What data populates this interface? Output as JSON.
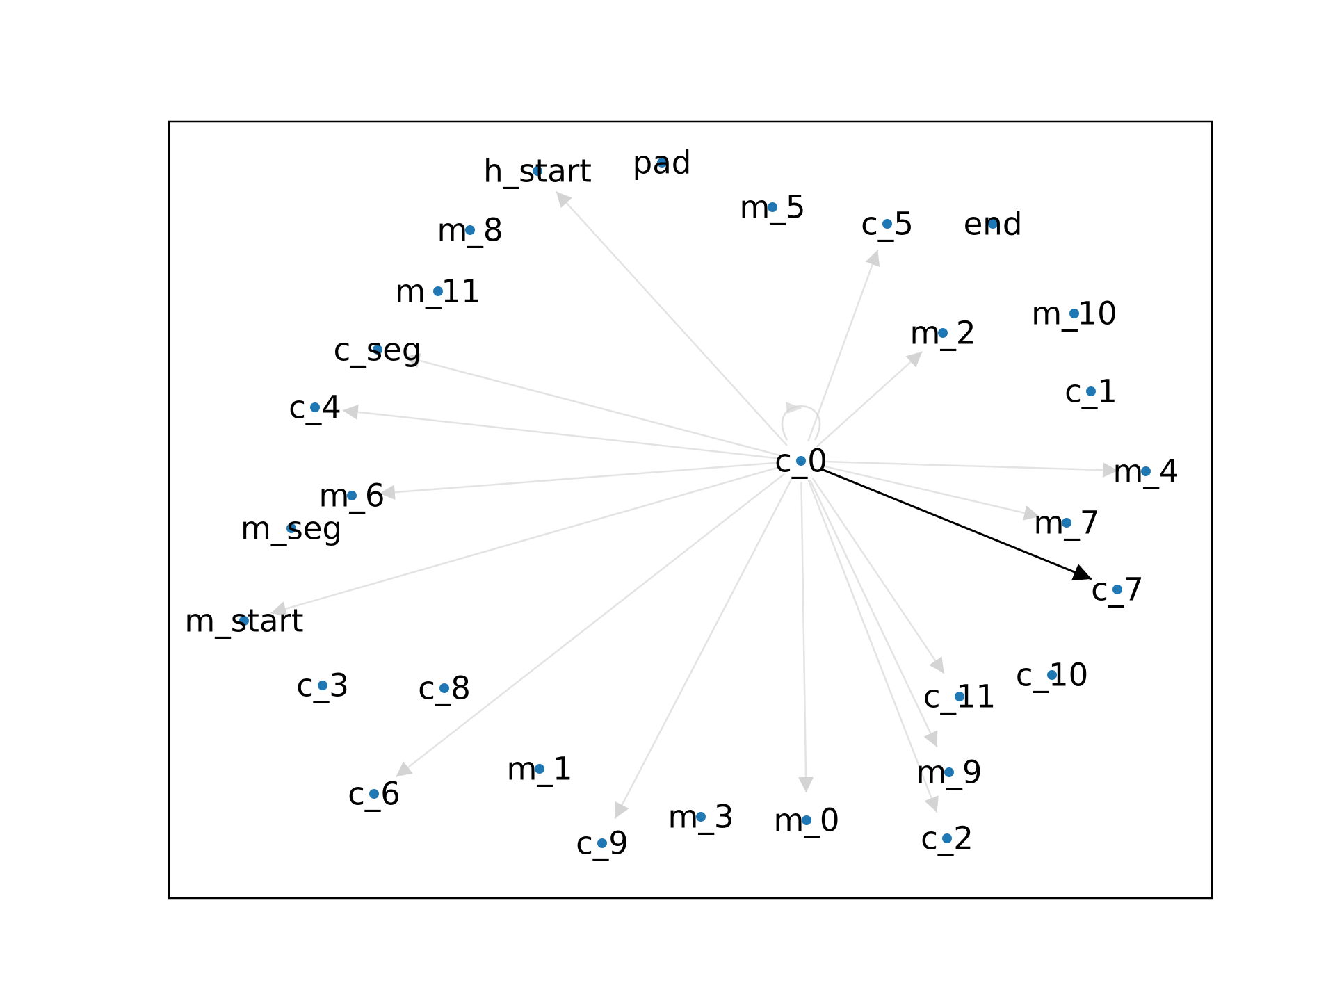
{
  "graph": {
    "center_node": "c_0",
    "node_color": "#1f77b4",
    "edge_color_faded": "#cccccc",
    "edge_color_highlight": "#000000",
    "highlighted_edge": {
      "from": "c_0",
      "to": "c_7"
    },
    "nodes": [
      {
        "id": "h_start",
        "label": "h_start"
      },
      {
        "id": "pad",
        "label": "pad"
      },
      {
        "id": "m_5",
        "label": "m_5"
      },
      {
        "id": "c_5",
        "label": "c_5"
      },
      {
        "id": "end",
        "label": "end"
      },
      {
        "id": "m_8",
        "label": "m_8"
      },
      {
        "id": "m_11",
        "label": "m_11"
      },
      {
        "id": "m_10",
        "label": "m_10"
      },
      {
        "id": "m_2",
        "label": "m_2"
      },
      {
        "id": "c_seg",
        "label": "c_seg"
      },
      {
        "id": "c_1",
        "label": "c_1"
      },
      {
        "id": "c_4",
        "label": "c_4"
      },
      {
        "id": "c_0",
        "label": "c_0"
      },
      {
        "id": "m_4",
        "label": "m_4"
      },
      {
        "id": "m_6",
        "label": "m_6"
      },
      {
        "id": "m_7",
        "label": "m_7"
      },
      {
        "id": "m_seg",
        "label": "m_seg"
      },
      {
        "id": "c_7",
        "label": "c_7"
      },
      {
        "id": "m_start",
        "label": "m_start"
      },
      {
        "id": "c_10",
        "label": "c_10"
      },
      {
        "id": "c_3",
        "label": "c_3"
      },
      {
        "id": "c_8",
        "label": "c_8"
      },
      {
        "id": "c_11",
        "label": "c_11"
      },
      {
        "id": "m_9",
        "label": "m_9"
      },
      {
        "id": "m_1",
        "label": "m_1"
      },
      {
        "id": "c_6",
        "label": "c_6"
      },
      {
        "id": "m_3",
        "label": "m_3"
      },
      {
        "id": "m_0",
        "label": "m_0"
      },
      {
        "id": "c_9",
        "label": "c_9"
      },
      {
        "id": "c_2",
        "label": "c_2"
      }
    ],
    "edges": [
      {
        "from": "c_0",
        "to": "c_0"
      },
      {
        "from": "c_0",
        "to": "h_start"
      },
      {
        "from": "c_0",
        "to": "c_5"
      },
      {
        "from": "c_0",
        "to": "m_2"
      },
      {
        "from": "c_0",
        "to": "c_seg"
      },
      {
        "from": "c_0",
        "to": "c_4"
      },
      {
        "from": "c_0",
        "to": "m_4"
      },
      {
        "from": "c_0",
        "to": "m_7"
      },
      {
        "from": "c_0",
        "to": "c_7"
      },
      {
        "from": "c_0",
        "to": "m_6"
      },
      {
        "from": "c_0",
        "to": "m_start"
      },
      {
        "from": "c_0",
        "to": "c_6"
      },
      {
        "from": "c_0",
        "to": "c_9"
      },
      {
        "from": "c_0",
        "to": "m_0"
      },
      {
        "from": "c_0",
        "to": "c_11"
      },
      {
        "from": "c_0",
        "to": "m_9"
      },
      {
        "from": "c_0",
        "to": "c_2"
      }
    ]
  }
}
